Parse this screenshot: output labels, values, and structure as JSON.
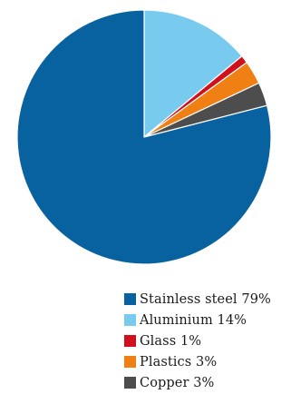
{
  "chart_data": {
    "type": "pie",
    "slices": [
      {
        "label": "Stainless steel 79%",
        "value": 79,
        "color": "#07629f"
      },
      {
        "label": "Aluminium 14%",
        "value": 14,
        "color": "#78cbef"
      },
      {
        "label": "Glass 1%",
        "value": 1,
        "color": "#d0111d"
      },
      {
        "label": "Plastics 3%",
        "value": 3,
        "color": "#f07f14"
      },
      {
        "label": "Copper 3%",
        "value": 3,
        "color": "#4d4d4d"
      }
    ],
    "start_angle": "12 o'clock",
    "direction": "clockwise",
    "legend_position": "bottom"
  }
}
